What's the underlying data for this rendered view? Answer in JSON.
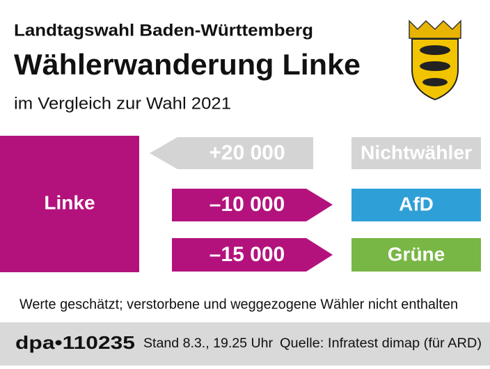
{
  "header": {
    "supertitle": "Landtagswahl Baden-Württemberg",
    "title": "Wählerwanderung Linke",
    "subtitle": "im Vergleich zur Wahl 2021"
  },
  "source_party": "Linke",
  "flows": [
    {
      "value_label": "+20 000",
      "party": "Nichtwähler"
    },
    {
      "value_label": "–10 000",
      "party": "AfD"
    },
    {
      "value_label": "–15 000",
      "party": "Grüne"
    }
  ],
  "footnote": "Werte geschätzt; verstorbene und weggezogene Wähler nicht enthalten",
  "footer": {
    "agency": "dpa•110235",
    "stand": "Stand 8.3., 19.25 Uhr",
    "source": "Quelle: Infratest dimap (für ARD)"
  }
}
